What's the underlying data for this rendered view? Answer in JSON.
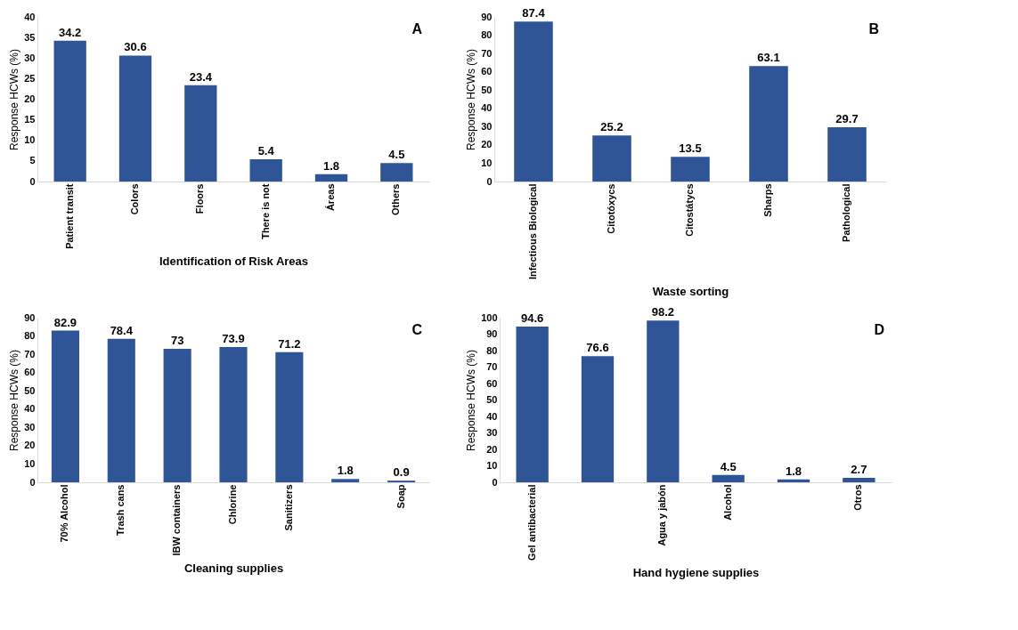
{
  "chart_data": [
    {
      "type": "bar",
      "xlabel": "Identification of Risk Areas",
      "ylabel": "Response HCWs  (%)",
      "categories": [
        "Patient transit",
        "Colors",
        "Floors",
        "There is not",
        "Áreas",
        "Others"
      ],
      "values": [
        34.2,
        30.6,
        23.4,
        5.4,
        1.8,
        4.5
      ],
      "color": "#2f5597",
      "ylim": [
        0,
        40
      ],
      "yticks": [
        0,
        5,
        10,
        15,
        20,
        25,
        30,
        35,
        40
      ],
      "data_labels": true,
      "annotations": [
        "A"
      ]
    },
    {
      "type": "bar",
      "xlabel": "Waste sorting",
      "ylabel": "Response HCWs  (%)",
      "categories": [
        "Infectious Biological",
        "Citotóxycs",
        "Citostátycs",
        "Sharps",
        "Pathological"
      ],
      "values": [
        87.4,
        25.2,
        13.5,
        63.1,
        29.7
      ],
      "color": "#2f5597",
      "ylim": [
        0,
        90
      ],
      "yticks": [
        0,
        10,
        20,
        30,
        40,
        50,
        60,
        70,
        80,
        90
      ],
      "data_labels": true,
      "annotations": [
        "B"
      ]
    },
    {
      "type": "bar",
      "xlabel": "Cleaning supplies",
      "ylabel": "Response HCWs (%)",
      "categories": [
        "70% Alcohol",
        "Trash cans",
        "IBW containers",
        "Chlorine",
        "Sanitizers",
        null,
        "Soap"
      ],
      "values": [
        82.9,
        78.4,
        73,
        73.9,
        71.2,
        1.8,
        0.9
      ],
      "color": "#2f5597",
      "ylim": [
        0,
        90
      ],
      "yticks": [
        0,
        10,
        20,
        30,
        40,
        50,
        60,
        70,
        80,
        90
      ],
      "data_labels": true,
      "annotations": [
        "C"
      ]
    },
    {
      "type": "bar",
      "xlabel": "Hand hygiene supplies",
      "ylabel": "Response HCWs (%)",
      "categories": [
        "Gel antibacterial",
        null,
        "Agua y jabón",
        "Alcohol",
        null,
        "Otros"
      ],
      "values": [
        94.6,
        76.6,
        98.2,
        4.5,
        1.8,
        2.7
      ],
      "color": "#2f5597",
      "ylim": [
        0,
        100
      ],
      "yticks": [
        0,
        10,
        20,
        30,
        40,
        50,
        60,
        70,
        80,
        90,
        100
      ],
      "data_labels": true,
      "annotations": [
        "D"
      ]
    }
  ]
}
